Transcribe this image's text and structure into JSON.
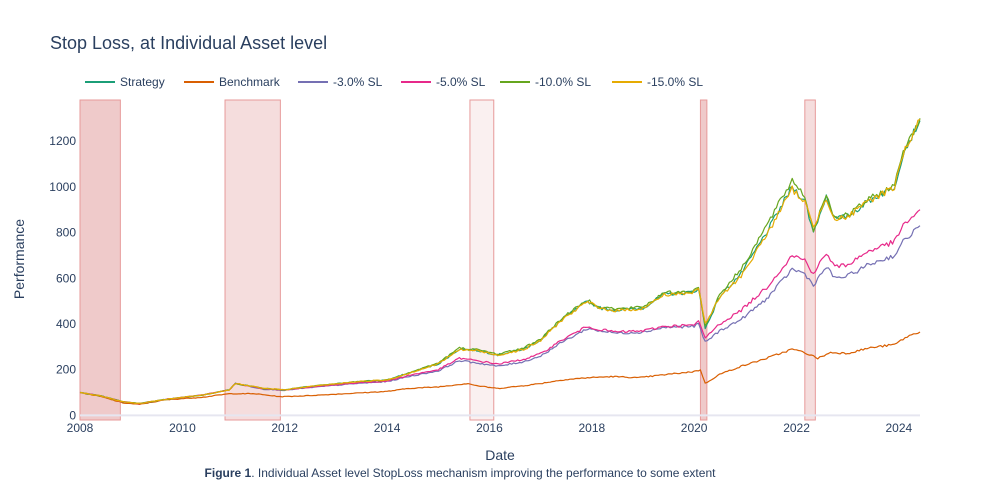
{
  "figure": {
    "caption_label": "Figure 1",
    "caption_text": ". Individual Asset level StopLoss mechanism improving the performance to some extent"
  },
  "chart_data": {
    "type": "line",
    "title": "Stop Loss, at Individual Asset level",
    "xlabel": "Date",
    "ylabel": "Performance",
    "x_ticks": [
      "2008",
      "2010",
      "2012",
      "2014",
      "2016",
      "2018",
      "2020",
      "2022",
      "2024"
    ],
    "y_ticks": [
      0,
      200,
      400,
      600,
      800,
      1000,
      1200
    ],
    "xlim": [
      "2008-01-01",
      "2024-05-31"
    ],
    "ylim": [
      -20,
      1380
    ],
    "legend_position": "top-left, horizontal",
    "grid": false,
    "shaded_regions": [
      {
        "start": "2008-01-01",
        "end": "2008-10-15",
        "intensity": "strong"
      },
      {
        "start": "2010-11-01",
        "end": "2011-12-01",
        "intensity": "medium"
      },
      {
        "start": "2015-08-15",
        "end": "2016-02-01",
        "intensity": "light"
      },
      {
        "start": "2020-02-15",
        "end": "2020-04-01",
        "intensity": "strong"
      },
      {
        "start": "2022-03-01",
        "end": "2022-05-15",
        "intensity": "medium"
      }
    ],
    "series": [
      {
        "name": "Strategy",
        "color": "#1b9e77",
        "points": [
          [
            "2008-01-01",
            100
          ],
          [
            "2008-06-01",
            85
          ],
          [
            "2008-11-01",
            60
          ],
          [
            "2009-03-01",
            52
          ],
          [
            "2009-09-01",
            70
          ],
          [
            "2010-06-01",
            90
          ],
          [
            "2010-12-01",
            112
          ],
          [
            "2011-01-15",
            140
          ],
          [
            "2011-08-01",
            118
          ],
          [
            "2012-01-01",
            112
          ],
          [
            "2012-06-01",
            125
          ],
          [
            "2013-01-01",
            138
          ],
          [
            "2013-06-01",
            148
          ],
          [
            "2014-01-01",
            155
          ],
          [
            "2014-06-01",
            185
          ],
          [
            "2015-01-01",
            225
          ],
          [
            "2015-06-01",
            290
          ],
          [
            "2015-10-01",
            285
          ],
          [
            "2016-03-01",
            265
          ],
          [
            "2016-09-01",
            290
          ],
          [
            "2017-01-01",
            330
          ],
          [
            "2017-06-01",
            420
          ],
          [
            "2017-12-01",
            500
          ],
          [
            "2018-03-01",
            470
          ],
          [
            "2018-07-01",
            460
          ],
          [
            "2019-01-01",
            470
          ],
          [
            "2019-06-01",
            530
          ],
          [
            "2020-01-01",
            540
          ],
          [
            "2020-02-01",
            560
          ],
          [
            "2020-03-20",
            380
          ],
          [
            "2020-07-01",
            520
          ],
          [
            "2020-12-01",
            620
          ],
          [
            "2021-06-01",
            800
          ],
          [
            "2021-12-01",
            1000
          ],
          [
            "2022-03-01",
            940
          ],
          [
            "2022-05-01",
            800
          ],
          [
            "2022-08-01",
            960
          ],
          [
            "2022-10-01",
            860
          ],
          [
            "2023-01-01",
            870
          ],
          [
            "2023-06-01",
            940
          ],
          [
            "2023-12-01",
            1000
          ],
          [
            "2024-02-01",
            1150
          ],
          [
            "2024-05-31",
            1290
          ]
        ]
      },
      {
        "name": "Benchmark",
        "color": "#d95f02",
        "points": [
          [
            "2008-01-01",
            100
          ],
          [
            "2008-06-01",
            82
          ],
          [
            "2008-11-01",
            55
          ],
          [
            "2009-03-01",
            48
          ],
          [
            "2009-09-01",
            68
          ],
          [
            "2010-06-01",
            80
          ],
          [
            "2010-12-01",
            95
          ],
          [
            "2011-06-01",
            95
          ],
          [
            "2011-12-01",
            82
          ],
          [
            "2012-06-01",
            86
          ],
          [
            "2013-01-01",
            93
          ],
          [
            "2013-06-01",
            98
          ],
          [
            "2014-01-01",
            105
          ],
          [
            "2014-06-01",
            118
          ],
          [
            "2015-01-01",
            125
          ],
          [
            "2015-08-01",
            140
          ],
          [
            "2015-10-01",
            130
          ],
          [
            "2016-03-01",
            118
          ],
          [
            "2016-09-01",
            130
          ],
          [
            "2017-01-01",
            140
          ],
          [
            "2017-06-01",
            155
          ],
          [
            "2017-12-01",
            165
          ],
          [
            "2018-06-01",
            170
          ],
          [
            "2018-12-01",
            165
          ],
          [
            "2019-06-01",
            178
          ],
          [
            "2020-01-01",
            192
          ],
          [
            "2020-02-15",
            200
          ],
          [
            "2020-03-20",
            140
          ],
          [
            "2020-07-01",
            180
          ],
          [
            "2020-12-01",
            215
          ],
          [
            "2021-06-01",
            250
          ],
          [
            "2021-12-01",
            290
          ],
          [
            "2022-03-01",
            275
          ],
          [
            "2022-06-01",
            250
          ],
          [
            "2022-09-01",
            275
          ],
          [
            "2023-01-01",
            272
          ],
          [
            "2023-06-01",
            295
          ],
          [
            "2023-12-01",
            310
          ],
          [
            "2024-03-01",
            345
          ],
          [
            "2024-05-31",
            365
          ]
        ]
      },
      {
        "name": "-3.0% SL",
        "color": "#7570b3",
        "points": [
          [
            "2008-01-01",
            100
          ],
          [
            "2008-06-01",
            85
          ],
          [
            "2008-11-01",
            60
          ],
          [
            "2009-03-01",
            52
          ],
          [
            "2009-09-01",
            70
          ],
          [
            "2010-06-01",
            90
          ],
          [
            "2010-12-01",
            112
          ],
          [
            "2011-01-15",
            140
          ],
          [
            "2011-08-01",
            115
          ],
          [
            "2012-01-01",
            110
          ],
          [
            "2012-06-01",
            120
          ],
          [
            "2013-01-01",
            132
          ],
          [
            "2013-06-01",
            140
          ],
          [
            "2014-01-01",
            148
          ],
          [
            "2014-06-01",
            170
          ],
          [
            "2015-01-01",
            195
          ],
          [
            "2015-06-01",
            240
          ],
          [
            "2015-10-01",
            230
          ],
          [
            "2016-03-01",
            215
          ],
          [
            "2016-09-01",
            235
          ],
          [
            "2017-01-01",
            260
          ],
          [
            "2017-06-01",
            320
          ],
          [
            "2017-12-01",
            380
          ],
          [
            "2018-03-01",
            370
          ],
          [
            "2018-07-01",
            360
          ],
          [
            "2019-01-01",
            365
          ],
          [
            "2019-06-01",
            385
          ],
          [
            "2020-01-01",
            390
          ],
          [
            "2020-02-01",
            400
          ],
          [
            "2020-03-20",
            320
          ],
          [
            "2020-07-01",
            370
          ],
          [
            "2020-12-01",
            420
          ],
          [
            "2021-06-01",
            510
          ],
          [
            "2021-12-01",
            640
          ],
          [
            "2022-03-01",
            620
          ],
          [
            "2022-05-01",
            570
          ],
          [
            "2022-08-01",
            650
          ],
          [
            "2022-10-01",
            600
          ],
          [
            "2023-01-01",
            610
          ],
          [
            "2023-06-01",
            660
          ],
          [
            "2023-12-01",
            700
          ],
          [
            "2024-02-01",
            760
          ],
          [
            "2024-05-31",
            830
          ]
        ]
      },
      {
        "name": "-5.0% SL",
        "color": "#e7298a",
        "points": [
          [
            "2008-01-01",
            100
          ],
          [
            "2008-06-01",
            85
          ],
          [
            "2008-11-01",
            60
          ],
          [
            "2009-03-01",
            52
          ],
          [
            "2009-09-01",
            70
          ],
          [
            "2010-06-01",
            90
          ],
          [
            "2010-12-01",
            112
          ],
          [
            "2011-01-15",
            140
          ],
          [
            "2011-08-01",
            116
          ],
          [
            "2012-01-01",
            111
          ],
          [
            "2012-06-01",
            122
          ],
          [
            "2013-01-01",
            134
          ],
          [
            "2013-06-01",
            143
          ],
          [
            "2014-01-01",
            150
          ],
          [
            "2014-06-01",
            175
          ],
          [
            "2015-01-01",
            200
          ],
          [
            "2015-06-01",
            250
          ],
          [
            "2015-10-01",
            240
          ],
          [
            "2016-03-01",
            225
          ],
          [
            "2016-09-01",
            245
          ],
          [
            "2017-01-01",
            270
          ],
          [
            "2017-06-01",
            330
          ],
          [
            "2017-12-01",
            390
          ],
          [
            "2018-03-01",
            375
          ],
          [
            "2018-07-01",
            365
          ],
          [
            "2019-01-01",
            370
          ],
          [
            "2019-06-01",
            390
          ],
          [
            "2020-01-01",
            395
          ],
          [
            "2020-02-01",
            410
          ],
          [
            "2020-03-20",
            340
          ],
          [
            "2020-07-01",
            400
          ],
          [
            "2020-12-01",
            460
          ],
          [
            "2021-06-01",
            560
          ],
          [
            "2021-12-01",
            700
          ],
          [
            "2022-03-01",
            680
          ],
          [
            "2022-05-01",
            620
          ],
          [
            "2022-08-01",
            710
          ],
          [
            "2022-10-01",
            650
          ],
          [
            "2023-01-01",
            660
          ],
          [
            "2023-06-01",
            720
          ],
          [
            "2023-12-01",
            760
          ],
          [
            "2024-02-01",
            830
          ],
          [
            "2024-05-31",
            900
          ]
        ]
      },
      {
        "name": "-10.0% SL",
        "color": "#66a61e",
        "points": [
          [
            "2008-01-01",
            100
          ],
          [
            "2008-06-01",
            85
          ],
          [
            "2008-11-01",
            60
          ],
          [
            "2009-03-01",
            52
          ],
          [
            "2009-09-01",
            70
          ],
          [
            "2010-06-01",
            90
          ],
          [
            "2010-12-01",
            112
          ],
          [
            "2011-01-15",
            140
          ],
          [
            "2011-08-01",
            118
          ],
          [
            "2012-01-01",
            112
          ],
          [
            "2012-06-01",
            125
          ],
          [
            "2013-01-01",
            138
          ],
          [
            "2013-06-01",
            148
          ],
          [
            "2014-01-01",
            155
          ],
          [
            "2014-06-01",
            185
          ],
          [
            "2015-01-01",
            230
          ],
          [
            "2015-06-01",
            295
          ],
          [
            "2015-10-01",
            288
          ],
          [
            "2016-03-01",
            268
          ],
          [
            "2016-09-01",
            295
          ],
          [
            "2017-01-01",
            335
          ],
          [
            "2017-06-01",
            425
          ],
          [
            "2017-12-01",
            505
          ],
          [
            "2018-03-01",
            475
          ],
          [
            "2018-07-01",
            465
          ],
          [
            "2019-01-01",
            475
          ],
          [
            "2019-06-01",
            535
          ],
          [
            "2020-01-01",
            545
          ],
          [
            "2020-02-01",
            565
          ],
          [
            "2020-03-20",
            390
          ],
          [
            "2020-07-01",
            530
          ],
          [
            "2020-12-01",
            640
          ],
          [
            "2021-06-01",
            830
          ],
          [
            "2021-12-01",
            1030
          ],
          [
            "2022-03-01",
            960
          ],
          [
            "2022-05-01",
            810
          ],
          [
            "2022-08-01",
            970
          ],
          [
            "2022-10-01",
            865
          ],
          [
            "2023-01-01",
            875
          ],
          [
            "2023-06-01",
            945
          ],
          [
            "2023-12-01",
            1005
          ],
          [
            "2024-02-01",
            1160
          ],
          [
            "2024-05-31",
            1300
          ]
        ]
      },
      {
        "name": "-15.0% SL",
        "color": "#e6ab02",
        "points": [
          [
            "2008-01-01",
            100
          ],
          [
            "2008-06-01",
            85
          ],
          [
            "2008-11-01",
            60
          ],
          [
            "2009-03-01",
            52
          ],
          [
            "2009-09-01",
            70
          ],
          [
            "2010-06-01",
            90
          ],
          [
            "2010-12-01",
            112
          ],
          [
            "2011-01-15",
            140
          ],
          [
            "2011-08-01",
            118
          ],
          [
            "2012-01-01",
            112
          ],
          [
            "2012-06-01",
            125
          ],
          [
            "2013-01-01",
            138
          ],
          [
            "2013-06-01",
            148
          ],
          [
            "2014-01-01",
            155
          ],
          [
            "2014-06-01",
            184
          ],
          [
            "2015-01-01",
            226
          ],
          [
            "2015-06-01",
            288
          ],
          [
            "2015-10-01",
            284
          ],
          [
            "2016-03-01",
            264
          ],
          [
            "2016-09-01",
            288
          ],
          [
            "2017-01-01",
            328
          ],
          [
            "2017-06-01",
            418
          ],
          [
            "2017-12-01",
            498
          ],
          [
            "2018-03-01",
            468
          ],
          [
            "2018-07-01",
            458
          ],
          [
            "2019-01-01",
            468
          ],
          [
            "2019-06-01",
            528
          ],
          [
            "2020-01-01",
            538
          ],
          [
            "2020-02-01",
            558
          ],
          [
            "2020-03-20",
            400
          ],
          [
            "2020-07-01",
            515
          ],
          [
            "2020-12-01",
            610
          ],
          [
            "2021-06-01",
            790
          ],
          [
            "2021-12-01",
            990
          ],
          [
            "2022-03-01",
            935
          ],
          [
            "2022-05-01",
            820
          ],
          [
            "2022-08-01",
            955
          ],
          [
            "2022-10-01",
            858
          ],
          [
            "2023-01-01",
            868
          ],
          [
            "2023-06-01",
            938
          ],
          [
            "2023-12-01",
            1000
          ],
          [
            "2024-02-01",
            1148
          ],
          [
            "2024-05-31",
            1295
          ]
        ]
      }
    ]
  }
}
